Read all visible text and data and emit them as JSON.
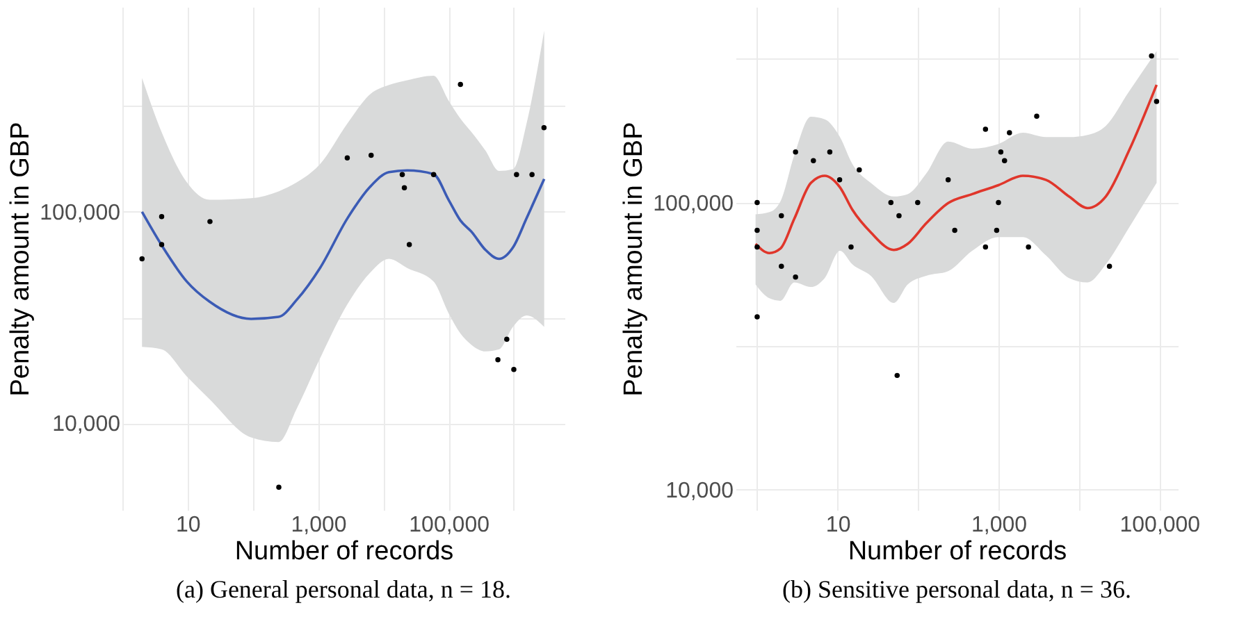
{
  "chart_data": [
    {
      "type": "scatter",
      "xlabel": "Number of records",
      "ylabel": "Penalty amount in GBP",
      "annotations": [
        "(a) General personal data, n = 18."
      ],
      "log": "xy",
      "grid": true,
      "xlim": [
        1,
        6000000
      ],
      "ylim": [
        3900,
        930000
      ],
      "xticks": [
        {
          "value": 1,
          "label": null
        },
        {
          "value": 10,
          "label": "10"
        },
        {
          "value": 100,
          "label": null
        },
        {
          "value": 1000,
          "label": "1,000"
        },
        {
          "value": 10000,
          "label": null
        },
        {
          "value": 100000,
          "label": "100,000"
        },
        {
          "value": 1000000,
          "label": null
        }
      ],
      "yticks": [
        {
          "value": 10000,
          "label": "10,000"
        },
        {
          "value": 31623,
          "label": null
        },
        {
          "value": 100000,
          "label": "100,000"
        },
        {
          "value": 316228,
          "label": null
        }
      ],
      "series": [
        {
          "marker": "circle",
          "color": "#000000",
          "x": [
            2,
            4,
            4,
            22,
            250,
            2800,
            6500,
            19500,
            21000,
            25000,
            59000,
            152000,
            570000,
            780000,
            1000000,
            1100000,
            1900000,
            2900000
          ],
          "values": [
            60000,
            95000,
            70000,
            90000,
            5000,
            180000,
            185000,
            150000,
            130000,
            70000,
            150000,
            400000,
            20000,
            25000,
            18000,
            150000,
            150000,
            250000
          ]
        },
        {
          "type": "line",
          "marker": "none",
          "color": "#3b5bb5",
          "x": [
            2,
            4,
            9.7,
            21.8,
            93.8,
            248,
            474,
            1070,
            2820,
            6350,
            12200,
            23200,
            58600,
            100000,
            152000,
            225000,
            366000,
            596000,
            968000,
            1570000,
            2920000
          ],
          "values": [
            100000,
            69500,
            46900,
            37600,
            31200,
            31900,
            38500,
            54300,
            93300,
            132000,
            154000,
            157000,
            151000,
            114000,
            91000,
            80500,
            66200,
            60000,
            67800,
            93300,
            143000
          ],
          "lower": [
            23000,
            22400,
            16700,
            13000,
            8590,
            8170,
            11800,
            20300,
            36600,
            51800,
            60000,
            54300,
            46900,
            33200,
            26600,
            23500,
            21900,
            22400,
            28600,
            32400,
            28600
          ],
          "upper": [
            429000,
            238000,
            138000,
            114000,
            116000,
            125000,
            138000,
            168000,
            262000,
            361000,
            398000,
            419000,
            440000,
            336000,
            276000,
            238000,
            195000,
            156000,
            159000,
            262000,
            719000
          ]
        }
      ]
    },
    {
      "type": "scatter",
      "xlabel": "Number of records",
      "ylabel": "Penalty amount in GBP",
      "annotations": [
        "(b) Sensitive personal data, n = 36."
      ],
      "log": "xy",
      "grid": true,
      "xlim": [
        0.54,
        170000
      ],
      "ylim": [
        8500,
        480000
      ],
      "xticks": [
        {
          "value": 1,
          "label": null
        },
        {
          "value": 10,
          "label": "10"
        },
        {
          "value": 100,
          "label": null
        },
        {
          "value": 1000,
          "label": "1,000"
        },
        {
          "value": 10000,
          "label": null
        },
        {
          "value": 100000,
          "label": "100,000"
        }
      ],
      "yticks": [
        {
          "value": 10000,
          "label": "10,000"
        },
        {
          "value": 31623,
          "label": null
        },
        {
          "value": 100000,
          "label": "100,000"
        },
        {
          "value": 316228,
          "label": null
        }
      ],
      "series": [
        {
          "marker": "circle",
          "color": "#000000",
          "x": [
            1,
            1,
            1,
            1,
            2,
            2,
            3,
            3,
            5,
            8,
            10.6,
            14.7,
            18.6,
            46,
            58,
            55,
            99,
            237,
            286,
            690,
            690,
            950,
            1000,
            1070,
            1190,
            1370,
            2360,
            2990,
            24000,
            80000,
            92500
          ],
          "values": [
            100000,
            80000,
            70000,
            40000,
            90000,
            60000,
            150000,
            55000,
            140000,
            150000,
            120000,
            70000,
            130000,
            100000,
            90000,
            25000,
            100000,
            120000,
            80000,
            180000,
            70000,
            80000,
            100000,
            150000,
            140000,
            175000,
            70000,
            200000,
            60000,
            324000,
            225000
          ]
        },
        {
          "type": "line",
          "marker": "none",
          "color": "#e0362b",
          "x": [
            0.955,
            1.42,
            1.95,
            2.89,
            4.65,
            6.92,
            10.7,
            15.3,
            25.9,
            50,
            74.3,
            126,
            237,
            471,
            1000,
            2010,
            3890,
            7530,
            12800,
            21600,
            41700,
            92500
          ],
          "values": [
            71800,
            66700,
            69200,
            87700,
            117000,
            124000,
            113000,
            94300,
            78700,
            68400,
            71800,
            84600,
            99600,
            107000,
            115000,
            124000,
            120000,
            105000,
            95700,
            105000,
            151000,
            257000
          ],
          "lower": [
            51800,
            46400,
            45500,
            52700,
            50800,
            54600,
            67900,
            60900,
            55600,
            44700,
            51800,
            55600,
            57700,
            67900,
            75800,
            75800,
            65500,
            54600,
            52700,
            60900,
            81500,
            117000
          ],
          "upper": [
            91000,
            92600,
            101000,
            146000,
            199000,
            195000,
            169000,
            136000,
            117000,
            105000,
            107000,
            126000,
            163000,
            154000,
            160000,
            175000,
            169000,
            169000,
            172000,
            185000,
            243000,
            337000
          ]
        }
      ]
    }
  ]
}
